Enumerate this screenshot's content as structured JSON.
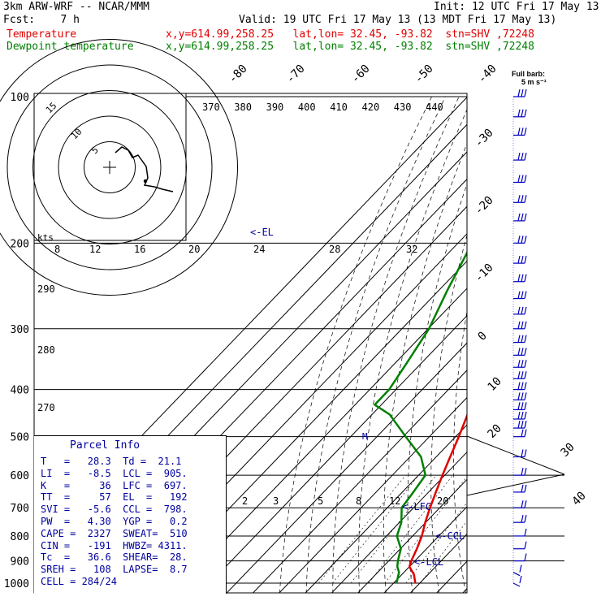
{
  "header": {
    "model": "3km ARW-WRF -- NCAR/MMM",
    "init": "Init: 12 UTC Fri 17 May 13",
    "fcst": "Fcst:    7 h",
    "valid": "Valid: 19 UTC Fri 17 May 13 (13 MDT Fri 17 May 13)",
    "temp_label": "Temperature",
    "temp_loc": "x,y=614.99,258.25   lat,lon= 32.45, -93.82  stn=SHV ,72248",
    "dew_label": "Dewpoint temperature",
    "dew_loc": "x,y=614.99,258.25   lat,lon= 32.45, -93.82  stn=SHV ,72248",
    "barb_legend_1": "Full barb:",
    "barb_legend_2": "5 m s⁻¹"
  },
  "parcel_info": {
    "title": "Parcel Info",
    "rows": [
      "T   =   28.3  Td =  21.1",
      "LI  =   -8.5  LCL =  905.",
      "K   =     36  LFC =  697.",
      "TT  =     57  EL  =   192",
      "SVI =   -5.6  CCL =  798.",
      "PW  =   4.30  YGP =   0.2",
      "CAPE =  2327  SWEAT=  510",
      "CIN =   -191  HWBZ= 4311.",
      "Tc  =   36.6  SHEAR=  28.",
      "SREH =   108  LAPSE=  8.7",
      "CELL = 284/24"
    ]
  },
  "hodograph": {
    "units": "kts",
    "ring_labels": [
      "5",
      "10",
      "15"
    ]
  },
  "annotations": {
    "el": "<-EL",
    "lfc": "<-LFC",
    "ccl": "<-CCL",
    "lcl": "<-LCL",
    "m": "M"
  },
  "chart_data": {
    "type": "line",
    "title": "",
    "pressure_levels_hPa": [
      100,
      200,
      300,
      400,
      500,
      600,
      700,
      800,
      900,
      1000
    ],
    "top_isotherm_labels": [
      "-80",
      "-70",
      "-60",
      "-50",
      "-40"
    ],
    "right_isotherm_labels": [
      "-30",
      "-20",
      "-10",
      "0",
      "10",
      "20",
      "30",
      "40"
    ],
    "theta_e_labels": [
      "370",
      "380",
      "390",
      "400",
      "410",
      "420",
      "430",
      "440"
    ],
    "theta_labels_left": [
      "290",
      "280",
      "270"
    ],
    "mixing_ratio_labels_top": [
      "8",
      "12",
      "16",
      "20",
      "24",
      "28",
      "32"
    ],
    "mixing_ratio_labels_low": [
      "2",
      "3",
      "5",
      "8",
      "12",
      "20"
    ],
    "series": [
      {
        "name": "Temperature",
        "color": "#e00000",
        "points": [
          [
            1000,
            28.3
          ],
          [
            960,
            24.6
          ],
          [
            925,
            20.0
          ],
          [
            900,
            18.6
          ],
          [
            850,
            16.3
          ],
          [
            800,
            13.5
          ],
          [
            750,
            9.8
          ],
          [
            700,
            6.3
          ],
          [
            650,
            2.8
          ],
          [
            600,
            -0.9
          ],
          [
            550,
            -4.7
          ],
          [
            500,
            -8.8
          ],
          [
            450,
            -13.6
          ],
          [
            400,
            -19.1
          ],
          [
            350,
            -25.5
          ],
          [
            300,
            -33.2
          ],
          [
            250,
            -42.6
          ],
          [
            200,
            -53.3
          ],
          [
            175,
            -57.5
          ],
          [
            150,
            -60.9
          ],
          [
            125,
            -63.4
          ],
          [
            100,
            -65.2
          ]
        ]
      },
      {
        "name": "Dewpoint temperature",
        "color": "#008000",
        "points": [
          [
            1000,
            21.1
          ],
          [
            950,
            18.1
          ],
          [
            925,
            15.4
          ],
          [
            900,
            13.5
          ],
          [
            850,
            10.2
          ],
          [
            800,
            4.0
          ],
          [
            750,
            0.7
          ],
          [
            700,
            -4.5
          ],
          [
            650,
            -5.8
          ],
          [
            600,
            -7.4
          ],
          [
            550,
            -15.8
          ],
          [
            500,
            -29.0
          ],
          [
            450,
            -43.3
          ],
          [
            430,
            -52.5
          ],
          [
            400,
            -52.6
          ],
          [
            350,
            -55.8
          ],
          [
            300,
            -59.7
          ],
          [
            250,
            -66.8
          ],
          [
            200,
            -74.6
          ],
          [
            150,
            -80.5
          ],
          [
            125,
            -82.5
          ],
          [
            100,
            -84.2
          ]
        ]
      }
    ],
    "hodograph_kts": [
      [
        3,
        8
      ],
      [
        4,
        14
      ],
      [
        5,
        20
      ],
      [
        7,
        28
      ],
      [
        12,
        29
      ],
      [
        15,
        30
      ],
      [
        16,
        34
      ],
      [
        18,
        40
      ],
      [
        22,
        39
      ]
    ],
    "wind_barb_levels_hPa": [
      100,
      110,
      120,
      135,
      150,
      165,
      180,
      200,
      220,
      240,
      260,
      280,
      300,
      320,
      340,
      360,
      380,
      400,
      420,
      440,
      460,
      480,
      500,
      550,
      600,
      650,
      700,
      750,
      800,
      850,
      900,
      950,
      1000
    ]
  }
}
